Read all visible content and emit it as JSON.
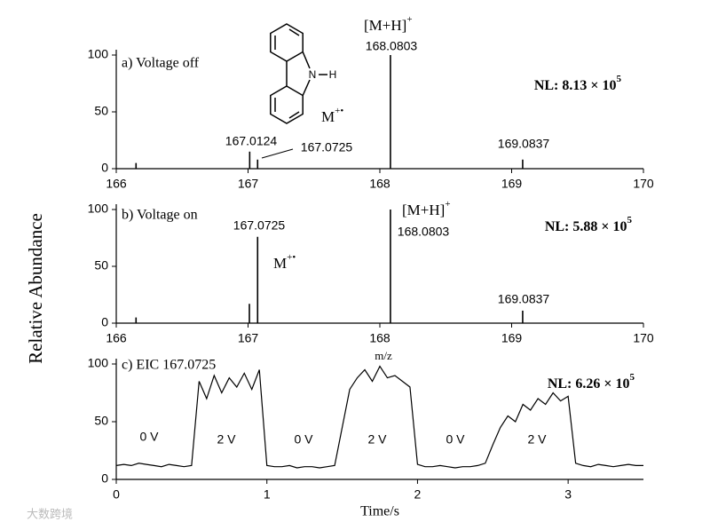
{
  "y_label": "Relative Abundance",
  "watermark": "大数跨境",
  "structure": {
    "atoms": [
      "N",
      "H"
    ]
  },
  "chart_data": [
    {
      "type": "stick",
      "title": "a) Voltage off",
      "nl": {
        "text": "NL: 8.13 × 10",
        "exponent": "5"
      },
      "ion": {
        "text": "[M+H]",
        "charge": "+"
      },
      "radical": {
        "text": "M",
        "charge": "+•"
      },
      "x": [
        166.15,
        167.0124,
        167.0725,
        168.0803,
        169.0837
      ],
      "values": [
        5,
        15,
        8,
        100,
        8
      ],
      "color": "#000000",
      "xlim": [
        166,
        170
      ],
      "xticks": [
        166,
        167,
        168,
        169,
        170
      ],
      "ylim": [
        0,
        100
      ],
      "yticks": [
        0,
        50,
        100
      ]
    },
    {
      "type": "stick",
      "title": "b) Voltage on",
      "nl": {
        "text": "NL: 5.88 × 10",
        "exponent": "5"
      },
      "ion": {
        "text": "[M+H]",
        "charge": "+"
      },
      "radical": {
        "text": "M",
        "charge": "+•"
      },
      "x_label": "m/z",
      "x": [
        166.15,
        167.01,
        167.0725,
        168.0803,
        169.0837
      ],
      "values": [
        5,
        17,
        76,
        100,
        11
      ],
      "color": "#000000",
      "xlim": [
        166,
        170
      ],
      "xticks": [
        166,
        167,
        168,
        169,
        170
      ],
      "ylim": [
        0,
        100
      ],
      "yticks": [
        0,
        50,
        100
      ]
    },
    {
      "type": "line",
      "title": "c) EIC  167.0725",
      "nl": {
        "text": "NL: 6.26 × 10",
        "exponent": "5"
      },
      "x_label": "Time/s",
      "annotations": [
        "0 V",
        "2 V",
        "0 V",
        "2 V",
        "0 V",
        "2 V"
      ],
      "color": "#000000",
      "x": [
        0,
        0.05,
        0.1,
        0.15,
        0.2,
        0.25,
        0.3,
        0.35,
        0.4,
        0.45,
        0.5,
        0.55,
        0.6,
        0.65,
        0.7,
        0.75,
        0.8,
        0.85,
        0.9,
        0.95,
        1,
        1.05,
        1.1,
        1.15,
        1.2,
        1.25,
        1.3,
        1.35,
        1.4,
        1.45,
        1.5,
        1.55,
        1.6,
        1.65,
        1.7,
        1.75,
        1.8,
        1.85,
        1.9,
        1.95,
        2,
        2.05,
        2.1,
        2.15,
        2.2,
        2.25,
        2.3,
        2.35,
        2.4,
        2.45,
        2.5,
        2.55,
        2.6,
        2.65,
        2.7,
        2.75,
        2.8,
        2.85,
        2.9,
        2.95,
        3,
        3.05,
        3.1,
        3.15,
        3.2,
        3.25,
        3.3,
        3.35,
        3.4,
        3.45,
        3.5
      ],
      "values": [
        12,
        13,
        12,
        14,
        13,
        12,
        11,
        13,
        12,
        11,
        12,
        85,
        70,
        90,
        75,
        88,
        80,
        92,
        78,
        95,
        12,
        11,
        11,
        12,
        10,
        11,
        11,
        10,
        11,
        12,
        45,
        78,
        88,
        95,
        85,
        98,
        88,
        90,
        85,
        80,
        13,
        11,
        11,
        12,
        11,
        10,
        11,
        11,
        12,
        14,
        30,
        45,
        55,
        50,
        65,
        60,
        70,
        65,
        75,
        68,
        72,
        14,
        12,
        11,
        13,
        12,
        11,
        12,
        13,
        12,
        12
      ],
      "xlim": [
        0,
        3.5
      ],
      "xticks": [
        0,
        1,
        2,
        3
      ],
      "ylim": [
        0,
        100
      ],
      "yticks": [
        0,
        50,
        100
      ]
    }
  ]
}
